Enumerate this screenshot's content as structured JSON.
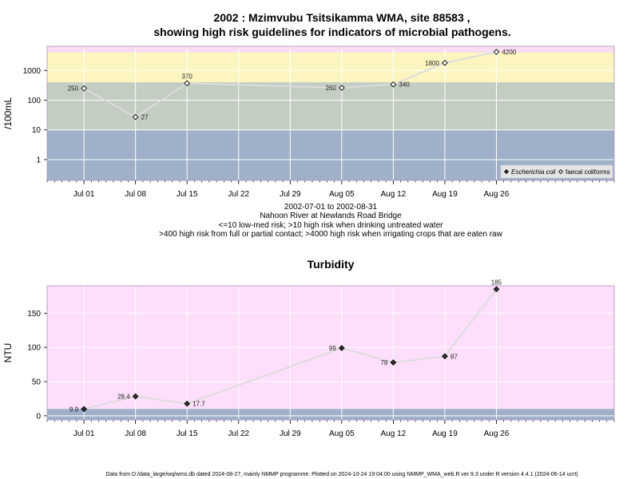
{
  "header": {
    "title_line1": "2002 : Mzimvubu Tsitsikamma WMA, site 88583 ,",
    "title_line2": "showing high risk guidelines for indicators of microbial pathogens."
  },
  "caption": {
    "line1": "2002-07-01 to 2002-08-31",
    "line2": "Nahoon River at Newlands Road Bridge",
    "line3": "<=10 low-med risk; >10 high risk when drinking untreated water",
    "line4": ">400 high risk from full or partial contact; >4000 high risk when irrigating crops that are eaten raw"
  },
  "footer": {
    "text": "Data from D:/data_large/wq/wms.db dated 2024-08-27, mainly NMMP programme. Plotted on 2024-10-24 19:04:00 using NMMP_WMA_web.R ver 9.3 under R version 4.4.1 (2024-06-14 ucrt)"
  },
  "colors": {
    "band_low": "#9fb0c8",
    "band_mid": "#c3cdc1",
    "band_high": "#fdf5c0",
    "band_top": "#f8ddf2",
    "turbidity_bg": "#fddffb",
    "turbidity_low": "#9fb0c8",
    "line": "#dcdcdc",
    "grid": "#ffffff",
    "frame": "#b18ec0"
  },
  "chart_data": [
    {
      "type": "line",
      "title": "",
      "xlabel": "",
      "ylabel": "/100mL",
      "y_scale": "log",
      "ylim": [
        0.2,
        6500
      ],
      "yticks": [
        1,
        10,
        100,
        1000
      ],
      "ytick_labels": [
        "1",
        "10",
        "100",
        "1000"
      ],
      "xlim": [
        "2002-06-26",
        "2002-09-11"
      ],
      "xticks": [
        "2002-07-01",
        "2002-07-08",
        "2002-07-15",
        "2002-07-22",
        "2002-07-29",
        "2002-08-05",
        "2002-08-12",
        "2002-08-19",
        "2002-08-26"
      ],
      "xtick_labels": [
        "Jul 01",
        "Jul 08",
        "Jul 15",
        "Jul 22",
        "Jul 29",
        "Aug 05",
        "Aug 12",
        "Aug 19",
        "Aug 26"
      ],
      "risk_thresholds": [
        10,
        400,
        4000
      ],
      "series": [
        {
          "name": "faecal coliforms",
          "marker": "open-diamond",
          "x": [
            "2002-07-01",
            "2002-07-08",
            "2002-07-15",
            "2002-08-05",
            "2002-08-12",
            "2002-08-19",
            "2002-08-26"
          ],
          "values": [
            250,
            27,
            370,
            260,
            340,
            1800,
            4200
          ],
          "labels": [
            "250",
            "27",
            "370",
            "260",
            "340",
            "1800",
            "4200"
          ]
        }
      ],
      "legend": {
        "placement": "bottom-right",
        "items": [
          {
            "name": "Escherichia coli",
            "marker": "filled-diamond"
          },
          {
            "name": "faecal coliforms",
            "marker": "open-diamond"
          }
        ]
      }
    },
    {
      "type": "line",
      "title": "Turbidity",
      "xlabel": "",
      "ylabel": "NTU",
      "ylim": [
        -6,
        190
      ],
      "yticks": [
        0,
        50,
        100,
        150
      ],
      "ytick_labels": [
        "0",
        "50",
        "100",
        "150"
      ],
      "low_band_top": 10,
      "xlim": [
        "2002-06-26",
        "2002-09-11"
      ],
      "xticks": [
        "2002-07-01",
        "2002-07-08",
        "2002-07-15",
        "2002-07-22",
        "2002-07-29",
        "2002-08-05",
        "2002-08-12",
        "2002-08-19",
        "2002-08-26"
      ],
      "xtick_labels": [
        "Jul 01",
        "Jul 08",
        "Jul 15",
        "Jul 22",
        "Jul 29",
        "Aug 05",
        "Aug 12",
        "Aug 19",
        "Aug 26"
      ],
      "series": [
        {
          "marker": "filled-diamond",
          "x": [
            "2002-07-01",
            "2002-07-08",
            "2002-07-15",
            "2002-08-05",
            "2002-08-12",
            "2002-08-19",
            "2002-08-26"
          ],
          "values": [
            9.9,
            28.4,
            17.7,
            99,
            78,
            87,
            185
          ],
          "labels": [
            "9.9",
            "28.4",
            "17.7",
            "99",
            "78",
            "87",
            "185"
          ]
        }
      ]
    }
  ]
}
